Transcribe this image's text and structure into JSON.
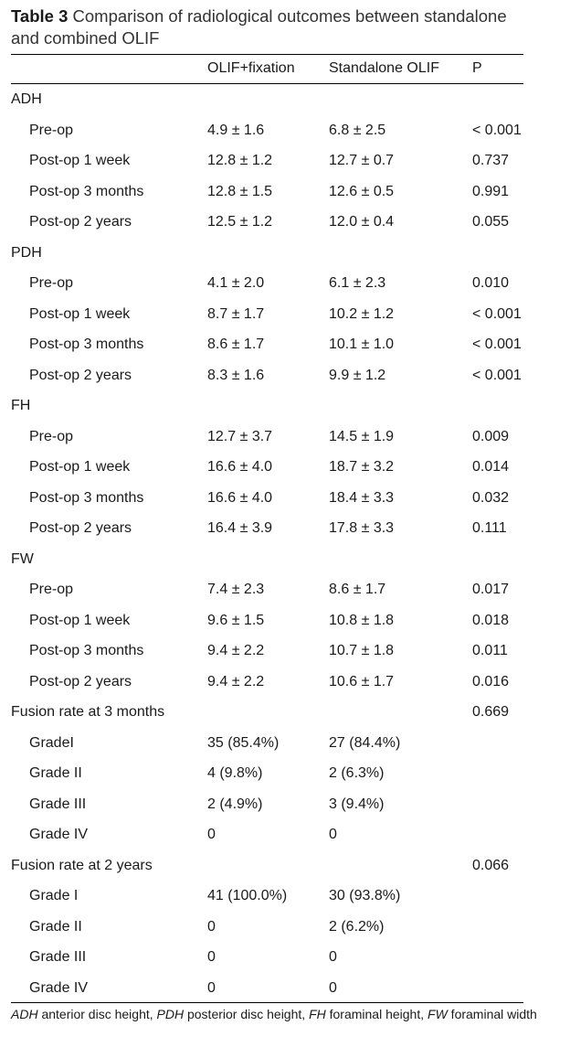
{
  "caption": {
    "label": "Table 3",
    "title": "Comparison of radiological outcomes between standalone and combined OLIF"
  },
  "header": {
    "col_a": "OLIF+fixation",
    "col_b": "Standalone OLIF",
    "col_p": "P"
  },
  "rows": [
    {
      "label": "ADH",
      "a": "",
      "b": "",
      "p": "",
      "sub": false
    },
    {
      "label": "Pre-op",
      "a": "4.9 ± 1.6",
      "b": "6.8 ± 2.5",
      "p": "< 0.001",
      "sub": true
    },
    {
      "label": "Post-op 1 week",
      "a": "12.8 ± 1.2",
      "b": "12.7 ± 0.7",
      "p": "0.737",
      "sub": true
    },
    {
      "label": "Post-op 3 months",
      "a": "12.8 ± 1.5",
      "b": "12.6 ± 0.5",
      "p": "0.991",
      "sub": true
    },
    {
      "label": "Post-op 2 years",
      "a": "12.5 ± 1.2",
      "b": "12.0 ± 0.4",
      "p": "0.055",
      "sub": true
    },
    {
      "label": "PDH",
      "a": "",
      "b": "",
      "p": "",
      "sub": false
    },
    {
      "label": "Pre-op",
      "a": "4.1 ± 2.0",
      "b": "6.1 ± 2.3",
      "p": "0.010",
      "sub": true
    },
    {
      "label": "Post-op 1 week",
      "a": "8.7 ± 1.7",
      "b": "10.2 ± 1.2",
      "p": "< 0.001",
      "sub": true
    },
    {
      "label": "Post-op 3 months",
      "a": "8.6 ± 1.7",
      "b": "10.1 ± 1.0",
      "p": "< 0.001",
      "sub": true
    },
    {
      "label": "Post-op 2 years",
      "a": "8.3 ± 1.6",
      "b": "9.9 ± 1.2",
      "p": "< 0.001",
      "sub": true
    },
    {
      "label": "FH",
      "a": "",
      "b": "",
      "p": "",
      "sub": false
    },
    {
      "label": "Pre-op",
      "a": "12.7 ± 3.7",
      "b": "14.5 ± 1.9",
      "p": "0.009",
      "sub": true
    },
    {
      "label": "Post-op 1 week",
      "a": "16.6 ± 4.0",
      "b": "18.7 ± 3.2",
      "p": "0.014",
      "sub": true
    },
    {
      "label": "Post-op 3 months",
      "a": "16.6 ± 4.0",
      "b": "18.4 ± 3.3",
      "p": "0.032",
      "sub": true
    },
    {
      "label": "Post-op 2 years",
      "a": "16.4 ± 3.9",
      "b": "17.8 ± 3.3",
      "p": "0.111",
      "sub": true
    },
    {
      "label": "FW",
      "a": "",
      "b": "",
      "p": "",
      "sub": false
    },
    {
      "label": "Pre-op",
      "a": "7.4 ± 2.3",
      "b": "8.6 ± 1.7",
      "p": "0.017",
      "sub": true
    },
    {
      "label": "Post-op 1 week",
      "a": "9.6 ± 1.5",
      "b": "10.8 ± 1.8",
      "p": "0.018",
      "sub": true
    },
    {
      "label": "Post-op 3 months",
      "a": "9.4 ± 2.2",
      "b": "10.7 ± 1.8",
      "p": "0.011",
      "sub": true
    },
    {
      "label": "Post-op 2 years",
      "a": "9.4 ± 2.2",
      "b": "10.6 ± 1.7",
      "p": "0.016",
      "sub": true
    },
    {
      "label": "Fusion rate at 3 months",
      "a": "",
      "b": "",
      "p": "0.669",
      "sub": false
    },
    {
      "label": "GradeI",
      "a": "35 (85.4%)",
      "b": "27 (84.4%)",
      "p": "",
      "sub": true
    },
    {
      "label": "Grade II",
      "a": "4 (9.8%)",
      "b": "2 (6.3%)",
      "p": "",
      "sub": true
    },
    {
      "label": "Grade III",
      "a": "2 (4.9%)",
      "b": "3 (9.4%)",
      "p": "",
      "sub": true
    },
    {
      "label": "Grade IV",
      "a": "0",
      "b": "0",
      "p": "",
      "sub": true
    },
    {
      "label": "Fusion rate at 2 years",
      "a": "",
      "b": "",
      "p": "0.066",
      "sub": false
    },
    {
      "label": "Grade I",
      "a": "41 (100.0%)",
      "b": "30 (93.8%)",
      "p": "",
      "sub": true
    },
    {
      "label": "Grade II",
      "a": "0",
      "b": "2 (6.2%)",
      "p": "",
      "sub": true
    },
    {
      "label": "Grade III",
      "a": "0",
      "b": "0",
      "p": "",
      "sub": true
    },
    {
      "label": "Grade IV",
      "a": "0",
      "b": "0",
      "p": "",
      "sub": true
    }
  ],
  "footnote": {
    "adh_abbr": "ADH",
    "adh_def": " anterior disc height, ",
    "pdh_abbr": "PDH",
    "pdh_def": " posterior disc height, ",
    "fh_abbr": "FH",
    "fh_def": " foraminal height, ",
    "fw_abbr": "FW",
    "fw_def": " foraminal width"
  }
}
